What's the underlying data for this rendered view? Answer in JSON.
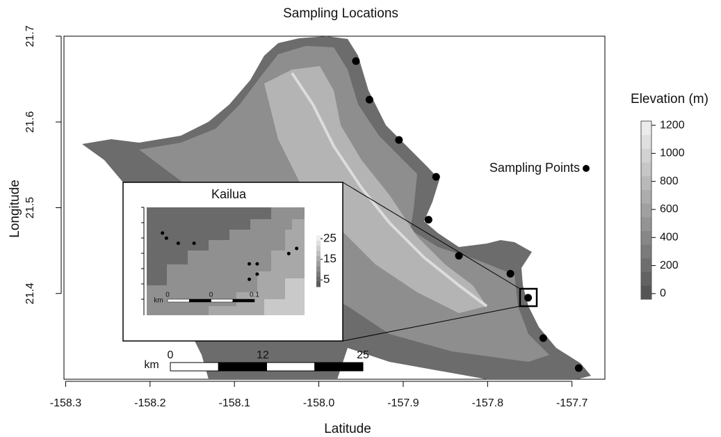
{
  "chart_data": {
    "type": "map",
    "title": "Sampling Locations",
    "x_label": "Latitude",
    "y_label": "Longitude",
    "xlim": [
      -158.302,
      -157.661
    ],
    "ylim": [
      21.3,
      21.7
    ],
    "xticks": [
      -158.3,
      -158.2,
      -158.1,
      {
        "value": -158,
        "label": "-158.0"
      },
      -157.9,
      -157.8,
      -157.7
    ],
    "yticks": [
      21.4,
      21.5,
      21.6,
      21.7
    ],
    "series": [
      {
        "name": "Sampling Points",
        "color": "#000000",
        "x": [
          -157.956,
          -157.94,
          -157.905,
          -157.861,
          -157.87,
          -157.834,
          -157.773,
          -157.752,
          -157.734,
          -157.692
        ],
        "values": [
          21.671,
          21.626,
          21.579,
          21.536,
          21.486,
          21.444,
          21.423,
          21.395,
          21.348,
          21.313
        ]
      }
    ],
    "colorbar": {
      "title": "Elevation (m)",
      "lim": [
        -40,
        1230
      ],
      "ticks": [
        0,
        200,
        400,
        600,
        800,
        1000,
        1200
      ]
    },
    "scale_bar": {
      "unit": "km",
      "lim": [
        0,
        25
      ],
      "ticks": [
        0,
        12,
        25
      ]
    },
    "inset": {
      "title": "Kailua",
      "xlim": [
        -157.761,
        -157.741
      ],
      "ylim": [
        21.385,
        21.406
      ],
      "x": [
        -157.759,
        -157.7585,
        -157.757,
        -157.755,
        -157.748,
        -157.747,
        -157.748,
        -157.747,
        -157.743,
        -157.742
      ],
      "values": [
        21.401,
        21.4,
        21.399,
        21.399,
        21.395,
        21.395,
        21.392,
        21.393,
        21.397,
        21.398
      ],
      "colorbar": {
        "lim": [
          1.7,
          26.7
        ],
        "ticks": [
          5,
          15,
          25
        ]
      },
      "scale_bar": {
        "unit": "km",
        "labels": [
          "0",
          "0",
          "0.1"
        ]
      }
    }
  }
}
